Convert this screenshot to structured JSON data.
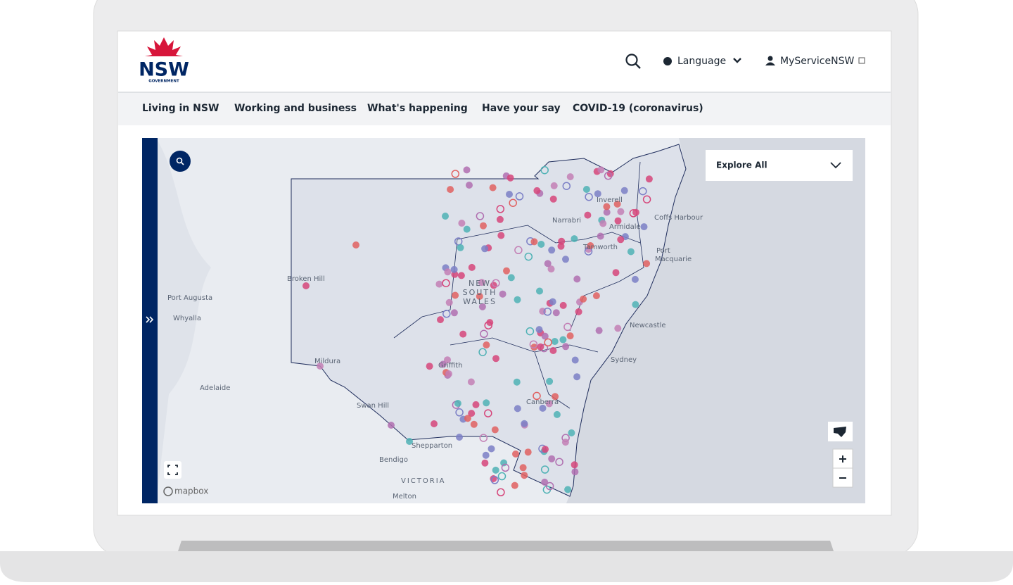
{
  "header": {
    "logo_text": "NSW",
    "logo_subtext": "GOVERNMENT",
    "language": "Language",
    "account": "MyServiceNSW"
  },
  "nav": [
    "Living in NSW",
    "Working and business",
    "What's happening",
    "Have your say",
    "COVID-19 (coronavirus)"
  ],
  "map": {
    "dropdown": "Explore All",
    "attribution": "mapbox",
    "state_label": [
      "NEW",
      "SOUTH",
      "WALES"
    ],
    "places": [
      "Broken Hill",
      "Port Augusta",
      "Whyalla",
      "Adelaide",
      "Mildura",
      "Griffith",
      "Swan Hill",
      "Shepparton",
      "Bendigo",
      "VICTORIA",
      "Melton",
      "Narrabri",
      "Inverell",
      "Armidale",
      "Tamworth",
      "Coffs Harbour",
      "Port",
      "Macquarie",
      "Newcastle",
      "Sydney",
      "Canberra"
    ]
  }
}
